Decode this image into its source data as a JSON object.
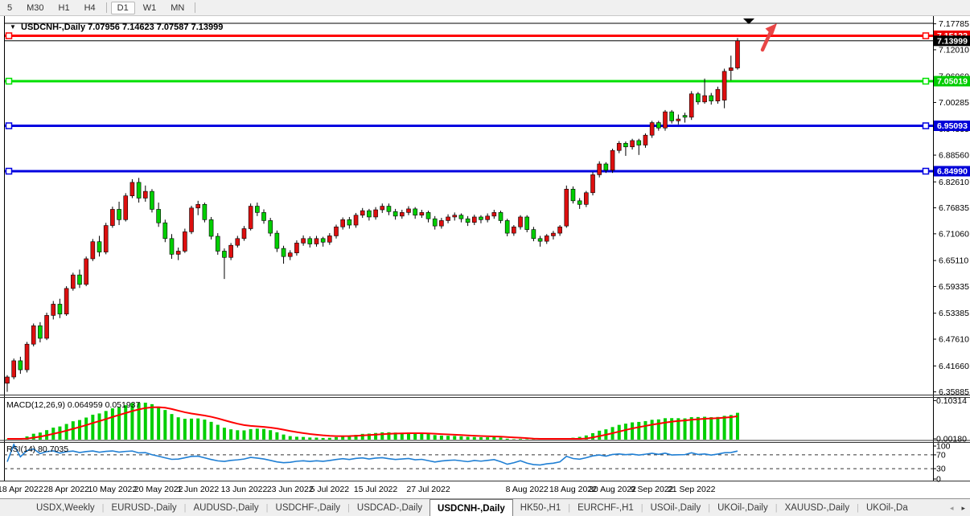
{
  "toolbar": {
    "items": [
      {
        "label": "5",
        "active": false
      },
      {
        "label": "M30",
        "active": false
      },
      {
        "label": "H1",
        "active": false
      },
      {
        "label": "H4",
        "active": false
      },
      {
        "label": "D1",
        "active": true
      },
      {
        "label": "W1",
        "active": false
      },
      {
        "label": "MN",
        "active": false
      }
    ]
  },
  "chart_title": {
    "dropdown_icon": "▼",
    "symbol": "USDCNH-,Daily",
    "ohlc": "7.07956 7.14623 7.07587 7.13999"
  },
  "colors": {
    "bull": "#dd0f0f",
    "bear": "#00cf00",
    "wick": "#000000",
    "line_red": "#ff0000",
    "line_green": "#00e000",
    "line_blue": "#0000e0",
    "bid_line": "#000000",
    "badge_red": "#ee0000",
    "badge_green": "#00cc00",
    "badge_blue": "#0000d8",
    "badge_black": "#000000",
    "badge_text": "#ffffff",
    "macd_hist": "#00cf00",
    "macd_signal": "#ff0000",
    "rsi_line": "#1f7fd4",
    "frame": "#000000",
    "arrow": "#e84545"
  },
  "y_axis": {
    "ticks": [
      "7.17785",
      "7.12010",
      "7.06060",
      "7.00285",
      "6.94335",
      "6.88560",
      "6.82610",
      "6.76835",
      "6.71060",
      "6.65110",
      "6.59335",
      "6.53385",
      "6.47610",
      "6.41660",
      "6.35885"
    ]
  },
  "hlines": [
    {
      "price": 7.15122,
      "label": "7.15122",
      "color_key": "line_red",
      "badge_key": "badge_red"
    },
    {
      "price": 7.05019,
      "label": "7.05019",
      "color_key": "line_green",
      "badge_key": "badge_green"
    },
    {
      "price": 6.95093,
      "label": "6.95093",
      "color_key": "line_blue",
      "badge_key": "badge_blue"
    },
    {
      "price": 6.8499,
      "label": "6.84990",
      "color_key": "line_blue",
      "badge_key": "badge_blue"
    }
  ],
  "bid": {
    "price": 7.13999,
    "label": "7.13999"
  },
  "x_axis": [
    {
      "label": "18 Apr 2022",
      "index": 2
    },
    {
      "label": "28 Apr 2022",
      "index": 9
    },
    {
      "label": "10 May 2022",
      "index": 16
    },
    {
      "label": "20 May 2022",
      "index": 23
    },
    {
      "label": "1 Jun 2022",
      "index": 29
    },
    {
      "label": "13 Jun 2022",
      "index": 36
    },
    {
      "label": "23 Jun 2022",
      "index": 43
    },
    {
      "label": "5 Jul 2022",
      "index": 49
    },
    {
      "label": "15 Jul 2022",
      "index": 56
    },
    {
      "label": "27 Jul 2022",
      "index": 64
    },
    {
      "label": "8 Aug 2022",
      "index": 79
    },
    {
      "label": "18 Aug 2022",
      "index": 86
    },
    {
      "label": "30 Aug 2022",
      "index": 92
    },
    {
      "label": "9 Sep 2022",
      "index": 98
    },
    {
      "label": "21 Sep 2022",
      "index": 104
    }
  ],
  "chart_data": {
    "type": "candlestick",
    "symbol": "USDCNH",
    "timeframe": "Daily",
    "ylim": [
      6.35885,
      7.17785
    ],
    "ohlc": [
      [
        6.378,
        6.396,
        6.359,
        6.392
      ],
      [
        6.392,
        6.433,
        6.387,
        6.428
      ],
      [
        6.428,
        6.437,
        6.399,
        6.408
      ],
      [
        6.408,
        6.47,
        6.402,
        6.465
      ],
      [
        6.465,
        6.511,
        6.46,
        6.506
      ],
      [
        6.506,
        6.514,
        6.469,
        6.478
      ],
      [
        6.478,
        6.535,
        6.474,
        6.529
      ],
      [
        6.529,
        6.561,
        6.52,
        6.554
      ],
      [
        6.554,
        6.566,
        6.523,
        6.532
      ],
      [
        6.532,
        6.594,
        6.528,
        6.589
      ],
      [
        6.589,
        6.624,
        6.584,
        6.619
      ],
      [
        6.619,
        6.631,
        6.59,
        6.598
      ],
      [
        6.598,
        6.66,
        6.594,
        6.655
      ],
      [
        6.655,
        6.699,
        6.65,
        6.693
      ],
      [
        6.693,
        6.706,
        6.66,
        6.67
      ],
      [
        6.67,
        6.735,
        6.665,
        6.729
      ],
      [
        6.729,
        6.771,
        6.724,
        6.765
      ],
      [
        6.765,
        6.782,
        6.73,
        6.742
      ],
      [
        6.742,
        6.801,
        6.738,
        6.795
      ],
      [
        6.795,
        6.832,
        6.79,
        6.825
      ],
      [
        6.825,
        6.835,
        6.78,
        6.79
      ],
      [
        6.79,
        6.818,
        6.782,
        6.805
      ],
      [
        6.805,
        6.81,
        6.758,
        6.765
      ],
      [
        6.765,
        6.78,
        6.726,
        6.735
      ],
      [
        6.735,
        6.742,
        6.692,
        6.7
      ],
      [
        6.7,
        6.71,
        6.655,
        6.665
      ],
      [
        6.665,
        6.68,
        6.652,
        6.672
      ],
      [
        6.672,
        6.722,
        6.668,
        6.715
      ],
      [
        6.715,
        6.773,
        6.71,
        6.768
      ],
      [
        6.768,
        6.784,
        6.752,
        6.776
      ],
      [
        6.776,
        6.78,
        6.736,
        6.742
      ],
      [
        6.742,
        6.748,
        6.698,
        6.705
      ],
      [
        6.705,
        6.712,
        6.664,
        6.672
      ],
      [
        6.672,
        6.678,
        6.61,
        6.658
      ],
      [
        6.658,
        6.69,
        6.652,
        6.685
      ],
      [
        6.685,
        6.706,
        6.68,
        6.7
      ],
      [
        6.7,
        6.728,
        6.695,
        6.722
      ],
      [
        6.722,
        6.778,
        6.718,
        6.772
      ],
      [
        6.772,
        6.78,
        6.75,
        6.758
      ],
      [
        6.758,
        6.765,
        6.733,
        6.74
      ],
      [
        6.74,
        6.746,
        6.705,
        6.712
      ],
      [
        6.712,
        6.718,
        6.67,
        6.678
      ],
      [
        6.678,
        6.684,
        6.644,
        6.66
      ],
      [
        6.66,
        6.674,
        6.652,
        6.668
      ],
      [
        6.668,
        6.696,
        6.662,
        6.69
      ],
      [
        6.69,
        6.707,
        6.684,
        6.7
      ],
      [
        6.7,
        6.705,
        6.68,
        6.688
      ],
      [
        6.688,
        6.706,
        6.682,
        6.7
      ],
      [
        6.7,
        6.704,
        6.682,
        6.692
      ],
      [
        6.692,
        6.712,
        6.686,
        6.706
      ],
      [
        6.706,
        6.731,
        6.7,
        6.726
      ],
      [
        6.726,
        6.747,
        6.72,
        6.742
      ],
      [
        6.742,
        6.748,
        6.722,
        6.73
      ],
      [
        6.73,
        6.757,
        6.724,
        6.752
      ],
      [
        6.752,
        6.768,
        6.746,
        6.762
      ],
      [
        6.762,
        6.766,
        6.74,
        6.748
      ],
      [
        6.748,
        6.77,
        6.742,
        6.764
      ],
      [
        6.764,
        6.778,
        6.757,
        6.772
      ],
      [
        6.772,
        6.778,
        6.752,
        6.76
      ],
      [
        6.76,
        6.766,
        6.742,
        6.75
      ],
      [
        6.75,
        6.764,
        6.744,
        6.758
      ],
      [
        6.758,
        6.772,
        6.752,
        6.766
      ],
      [
        6.766,
        6.77,
        6.744,
        6.752
      ],
      [
        6.752,
        6.764,
        6.746,
        6.758
      ],
      [
        6.758,
        6.762,
        6.736,
        6.744
      ],
      [
        6.744,
        6.75,
        6.72,
        6.728
      ],
      [
        6.728,
        6.746,
        6.722,
        6.74
      ],
      [
        6.74,
        6.754,
        6.734,
        6.748
      ],
      [
        6.748,
        6.758,
        6.74,
        6.752
      ],
      [
        6.752,
        6.756,
        6.736,
        6.744
      ],
      [
        6.744,
        6.75,
        6.728,
        6.736
      ],
      [
        6.736,
        6.753,
        6.73,
        6.748
      ],
      [
        6.748,
        6.752,
        6.734,
        6.742
      ],
      [
        6.742,
        6.756,
        6.736,
        6.75
      ],
      [
        6.75,
        6.764,
        6.744,
        6.758
      ],
      [
        6.758,
        6.762,
        6.734,
        6.74
      ],
      [
        6.74,
        6.744,
        6.705,
        6.712
      ],
      [
        6.712,
        6.73,
        6.706,
        6.726
      ],
      [
        6.726,
        6.752,
        6.72,
        6.748
      ],
      [
        6.748,
        6.752,
        6.714,
        6.72
      ],
      [
        6.72,
        6.726,
        6.694,
        6.7
      ],
      [
        6.7,
        6.706,
        6.682,
        6.694
      ],
      [
        6.694,
        6.71,
        6.688,
        6.706
      ],
      [
        6.706,
        6.717,
        6.698,
        6.712
      ],
      [
        6.712,
        6.73,
        6.706,
        6.726
      ],
      [
        6.728,
        6.818,
        6.724,
        6.81
      ],
      [
        6.81,
        6.816,
        6.778,
        6.784
      ],
      [
        6.784,
        6.79,
        6.766,
        6.776
      ],
      [
        6.776,
        6.806,
        6.77,
        6.802
      ],
      [
        6.802,
        6.848,
        6.796,
        6.842
      ],
      [
        6.842,
        6.872,
        6.836,
        6.866
      ],
      [
        6.866,
        6.87,
        6.846,
        6.852
      ],
      [
        6.852,
        6.9,
        6.846,
        6.896
      ],
      [
        6.896,
        6.917,
        6.89,
        6.912
      ],
      [
        6.912,
        6.916,
        6.884,
        6.904
      ],
      [
        6.904,
        6.922,
        6.898,
        6.918
      ],
      [
        6.918,
        6.922,
        6.886,
        6.908
      ],
      [
        6.908,
        6.934,
        6.902,
        6.93
      ],
      [
        6.93,
        6.962,
        6.924,
        6.958
      ],
      [
        6.958,
        6.962,
        6.94,
        6.946
      ],
      [
        6.946,
        6.986,
        6.94,
        6.982
      ],
      [
        6.982,
        6.986,
        6.956,
        6.962
      ],
      [
        6.962,
        6.976,
        6.954,
        6.966
      ],
      [
        6.974,
        6.98,
        6.958,
        6.97
      ],
      [
        6.97,
        7.028,
        6.964,
        7.022
      ],
      [
        7.022,
        7.026,
        6.998,
        7.004
      ],
      [
        7.004,
        7.056,
        7.0,
        7.018
      ],
      [
        7.018,
        7.024,
        6.998,
        7.006
      ],
      [
        7.006,
        7.038,
        7.0,
        7.032
      ],
      [
        7.008,
        7.078,
        6.99,
        7.072
      ],
      [
        7.074,
        7.107,
        7.052,
        7.08
      ],
      [
        7.07956,
        7.14623,
        7.07587,
        7.13999
      ]
    ]
  },
  "macd_panel": {
    "title": "MACD(12,26,9)",
    "values": "0.064959 0.051937",
    "params": {
      "fast": 12,
      "slow": 26,
      "signal": 9
    },
    "ticks": [
      {
        "label": "0.10314",
        "value": 0.10314
      },
      {
        "label": "0.00180",
        "value": 0.0018
      }
    ]
  },
  "rsi_panel": {
    "title": "RSI(14)",
    "value": "80.7035",
    "period": 14,
    "ticks": [
      {
        "label": "100",
        "value": 100
      },
      {
        "label": "70",
        "value": 70
      },
      {
        "label": "30",
        "value": 30
      },
      {
        "label": "0",
        "value": 0
      }
    ],
    "levels": [
      70,
      30
    ]
  },
  "tabs": {
    "items": [
      {
        "label": "USDX,Weekly",
        "active": false
      },
      {
        "label": "EURUSD-,Daily",
        "active": false
      },
      {
        "label": "AUDUSD-,Daily",
        "active": false
      },
      {
        "label": "USDCHF-,Daily",
        "active": false
      },
      {
        "label": "USDCAD-,Daily",
        "active": false
      },
      {
        "label": "USDCNH-,Daily",
        "active": true
      },
      {
        "label": "HK50-,H1",
        "active": false
      },
      {
        "label": "EURCHF-,H1",
        "active": false
      },
      {
        "label": "USOil-,Daily",
        "active": false
      },
      {
        "label": "UKOil-,Daily",
        "active": false
      },
      {
        "label": "XAUUSD-,Daily",
        "active": false
      },
      {
        "label": "UKOil-,Da",
        "active": false
      }
    ],
    "scroll_left": "◂",
    "scroll_right": "▸"
  }
}
